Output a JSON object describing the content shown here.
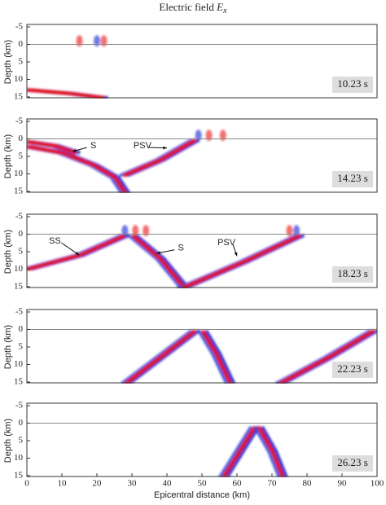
{
  "figure_title": {
    "text": "Electric field",
    "symbol": "E",
    "subscript": "x"
  },
  "chart_data": [
    {
      "type": "wavefield",
      "ylabel": "Depth (km)",
      "xlim": [
        0,
        100
      ],
      "ylim": [
        -5,
        15
      ],
      "y_inverted": true,
      "yticks": [
        -5,
        0,
        5,
        10,
        15
      ],
      "time_label": "10.23 s",
      "annotations": []
    },
    {
      "type": "wavefield",
      "ylabel": "Depth (km)",
      "xlim": [
        0,
        100
      ],
      "ylim": [
        -5,
        15
      ],
      "y_inverted": true,
      "yticks": [
        -5,
        0,
        5,
        10,
        15
      ],
      "time_label": "14.23 s",
      "annotations": [
        "S",
        "PSV"
      ]
    },
    {
      "type": "wavefield",
      "ylabel": "Depth (km)",
      "xlim": [
        0,
        100
      ],
      "ylim": [
        -5,
        15
      ],
      "y_inverted": true,
      "yticks": [
        -5,
        0,
        5,
        10,
        15
      ],
      "time_label": "18.23 s",
      "annotations": [
        "SS",
        "S",
        "PSV"
      ]
    },
    {
      "type": "wavefield",
      "ylabel": "Depth (km)",
      "xlim": [
        0,
        100
      ],
      "ylim": [
        -5,
        15
      ],
      "y_inverted": true,
      "yticks": [
        -5,
        0,
        5,
        10,
        15
      ],
      "time_label": "22.23 s",
      "annotations": []
    },
    {
      "type": "wavefield",
      "ylabel": "Depth (km)",
      "xlim": [
        0,
        100
      ],
      "ylim": [
        -5,
        15
      ],
      "y_inverted": true,
      "yticks": [
        -5,
        0,
        5,
        10,
        15
      ],
      "time_label": "26.23 s",
      "annotations": [],
      "xlabel": "Epicentral distance (km)",
      "xticks": [
        0,
        10,
        20,
        30,
        40,
        50,
        60,
        70,
        80,
        90,
        100
      ]
    }
  ]
}
